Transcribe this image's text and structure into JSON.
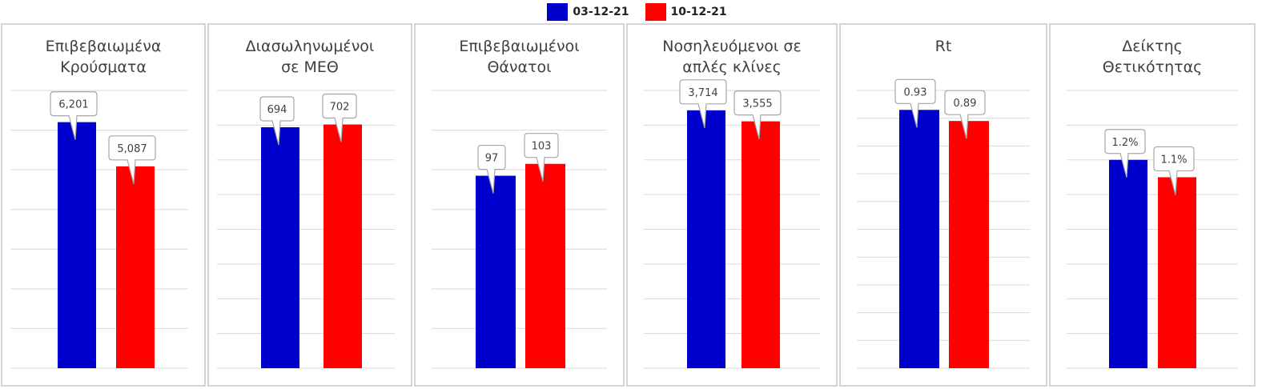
{
  "colors": {
    "series_1": "#0000cc",
    "series_2": "#ff0000",
    "gridline": "#d9d9d9",
    "panel_border": "#d4d4d4",
    "callout_border": "#a6a6a6"
  },
  "legend": {
    "items": [
      {
        "label": "03-12-21",
        "color": "#0000cc"
      },
      {
        "label": "10-12-21",
        "color": "#ff0000"
      }
    ],
    "placement": "top-center"
  },
  "chart_data": [
    {
      "type": "bar",
      "title": "Επιβεβαιωμένα\nΚρούσματα",
      "categories": [
        "03-12-21",
        "10-12-21"
      ],
      "values": [
        6201,
        5087
      ],
      "labels": [
        "6,201",
        "5,087"
      ],
      "ylim": [
        0,
        7000
      ],
      "grid": true
    },
    {
      "type": "bar",
      "title": "Διασωληνωμένοι\nσε ΜΕΘ",
      "categories": [
        "03-12-21",
        "10-12-21"
      ],
      "values": [
        694,
        702
      ],
      "labels": [
        "694",
        "702"
      ],
      "ylim": [
        0,
        800
      ],
      "grid": true
    },
    {
      "type": "bar",
      "title": "Επιβεβαιωμένοι\nΘάνατοι",
      "categories": [
        "03-12-21",
        "10-12-21"
      ],
      "values": [
        97,
        103
      ],
      "labels": [
        "97",
        "103"
      ],
      "ylim": [
        0,
        140
      ],
      "grid": true
    },
    {
      "type": "bar",
      "title": "Νοσηλευόμενοι σε\nαπλές κλίνες",
      "categories": [
        "03-12-21",
        "10-12-21"
      ],
      "values": [
        3714,
        3555
      ],
      "labels": [
        "3,714",
        "3,555"
      ],
      "ylim": [
        0,
        4000
      ],
      "grid": true
    },
    {
      "type": "bar",
      "title": "Rt",
      "categories": [
        "03-12-21",
        "10-12-21"
      ],
      "values": [
        0.93,
        0.89
      ],
      "labels": [
        "0.93",
        "0.89"
      ],
      "ylim": [
        0,
        1
      ],
      "grid": true
    },
    {
      "type": "bar",
      "title": "Δείκτης\nΘετικότητας",
      "categories": [
        "03-12-21",
        "10-12-21"
      ],
      "values": [
        1.2,
        1.1
      ],
      "labels": [
        "1.2%",
        "1.1%"
      ],
      "ylim": [
        0,
        1.6
      ],
      "grid": true
    }
  ]
}
